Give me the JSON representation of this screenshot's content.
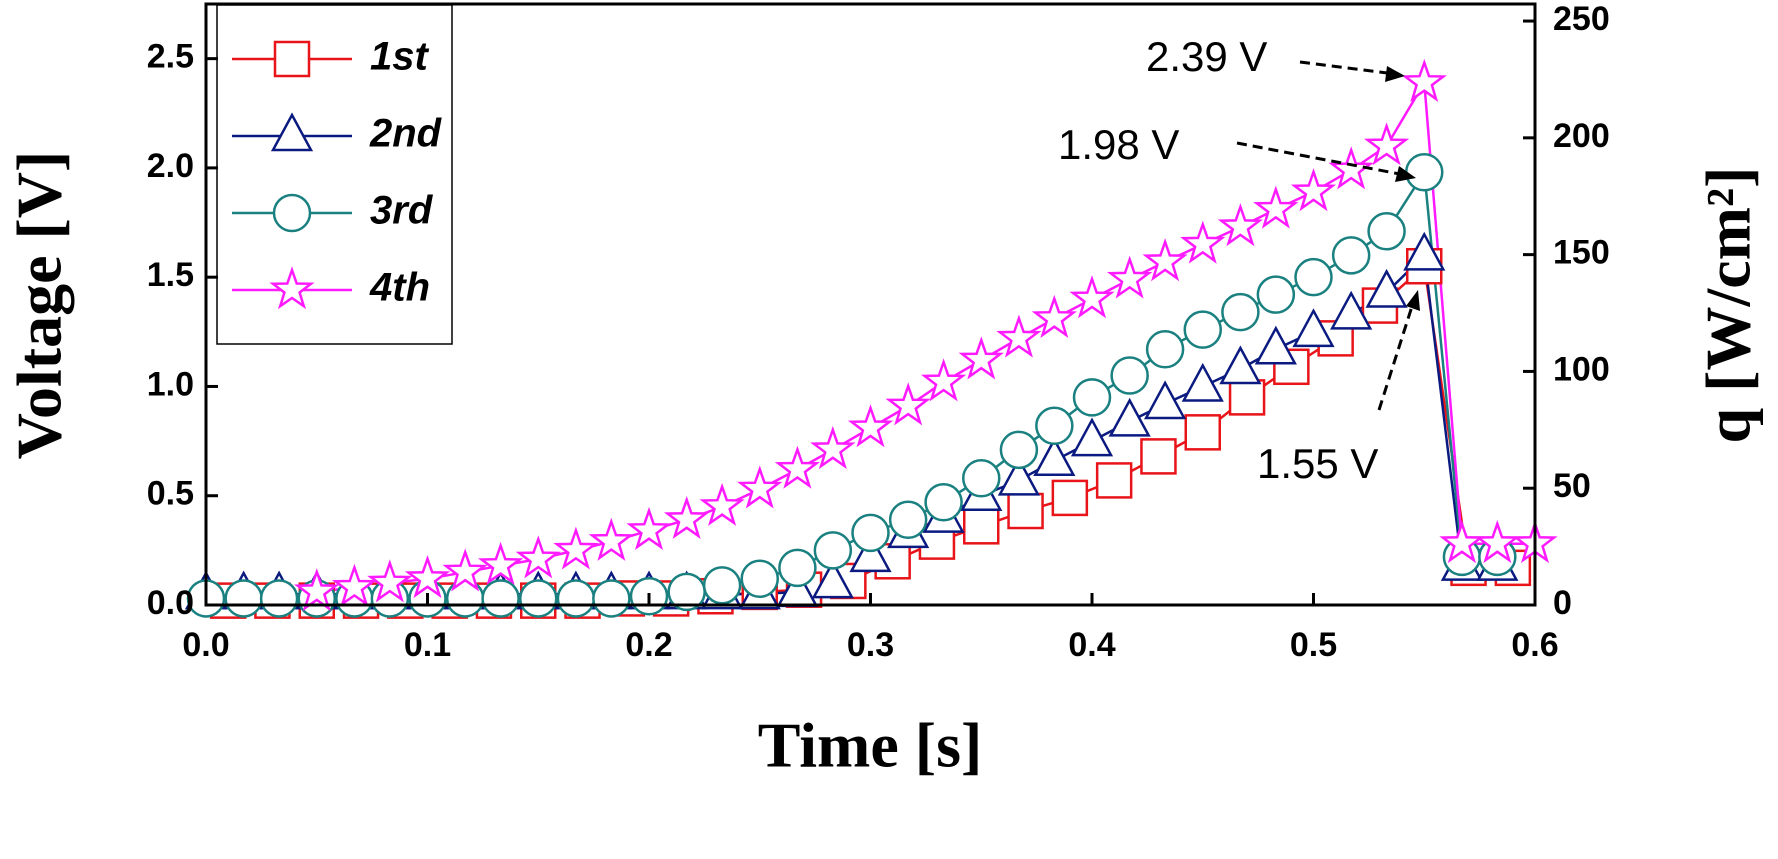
{
  "chart_data": {
    "type": "line",
    "x_label": "Time [s]",
    "y_label": "Voltage [V]",
    "y2_label": "q [W/cm²]",
    "xlim": [
      0,
      0.6
    ],
    "ylim": [
      0,
      2.75
    ],
    "y2lim": [
      0,
      257.3
    ],
    "xticks": [
      {
        "value": 0,
        "label": "0.0"
      },
      0.1,
      0.2,
      0.3,
      0.4,
      0.5,
      0.6
    ],
    "yticks": [
      {
        "value": 0,
        "label": "0.0"
      },
      0.5,
      {
        "value": 1,
        "label": "1.0"
      },
      1.5,
      {
        "value": 2,
        "label": "2.0"
      },
      2.5
    ],
    "y2ticks": [
      0,
      50,
      100,
      150,
      200,
      250
    ],
    "series": [
      {
        "name": "1st",
        "color": "#e8141a",
        "marker": "square",
        "x": [
          0.01,
          0.03,
          0.05,
          0.07,
          0.09,
          0.11,
          0.13,
          0.15,
          0.17,
          0.19,
          0.21,
          0.23,
          0.25,
          0.27,
          0.29,
          0.31,
          0.33,
          0.35,
          0.37,
          0.39,
          0.41,
          0.43,
          0.45,
          0.47,
          0.49,
          0.51,
          0.53,
          0.55,
          0.57,
          0.59
        ],
        "values": [
          0.02,
          0.02,
          0.02,
          0.02,
          0.02,
          0.02,
          0.02,
          0.02,
          0.02,
          0.03,
          0.03,
          0.04,
          0.06,
          0.07,
          0.11,
          0.2,
          0.29,
          0.36,
          0.43,
          0.49,
          0.57,
          0.68,
          0.79,
          0.95,
          1.09,
          1.22,
          1.37,
          1.55,
          0.17,
          0.17
        ]
      },
      {
        "name": "2nd",
        "color": "#0b1a80",
        "marker": "triangle",
        "x": [
          0,
          0.017,
          0.033,
          0.05,
          0.067,
          0.083,
          0.1,
          0.117,
          0.133,
          0.15,
          0.167,
          0.183,
          0.2,
          0.217,
          0.233,
          0.25,
          0.267,
          0.283,
          0.3,
          0.317,
          0.333,
          0.35,
          0.367,
          0.383,
          0.4,
          0.417,
          0.433,
          0.45,
          0.467,
          0.483,
          0.5,
          0.517,
          0.533,
          0.55,
          0.567,
          0.583
        ],
        "values": [
          0.05,
          0.05,
          0.05,
          0.05,
          0.05,
          0.05,
          0.05,
          0.05,
          0.05,
          0.05,
          0.05,
          0.05,
          0.05,
          0.05,
          0.05,
          0.05,
          0.06,
          0.1,
          0.22,
          0.33,
          0.4,
          0.5,
          0.57,
          0.66,
          0.75,
          0.84,
          0.92,
          1.0,
          1.08,
          1.17,
          1.25,
          1.33,
          1.43,
          1.6,
          0.18,
          0.18
        ]
      },
      {
        "name": "3rd",
        "color": "#1a8080",
        "marker": "circle",
        "x": [
          0,
          0.017,
          0.033,
          0.05,
          0.067,
          0.083,
          0.1,
          0.117,
          0.133,
          0.15,
          0.167,
          0.183,
          0.2,
          0.217,
          0.233,
          0.25,
          0.267,
          0.283,
          0.3,
          0.317,
          0.333,
          0.35,
          0.367,
          0.383,
          0.4,
          0.417,
          0.433,
          0.45,
          0.467,
          0.483,
          0.5,
          0.517,
          0.533,
          0.55,
          0.567,
          0.583
        ],
        "values": [
          0.03,
          0.03,
          0.03,
          0.03,
          0.03,
          0.03,
          0.03,
          0.03,
          0.03,
          0.03,
          0.03,
          0.03,
          0.04,
          0.06,
          0.09,
          0.12,
          0.17,
          0.25,
          0.33,
          0.39,
          0.47,
          0.58,
          0.71,
          0.82,
          0.95,
          1.05,
          1.17,
          1.26,
          1.34,
          1.42,
          1.5,
          1.6,
          1.71,
          1.98,
          0.22,
          0.22
        ]
      },
      {
        "name": "4th",
        "color": "#ff1aff",
        "marker": "star",
        "x": [
          0.05,
          0.067,
          0.083,
          0.1,
          0.117,
          0.133,
          0.15,
          0.167,
          0.183,
          0.2,
          0.217,
          0.233,
          0.25,
          0.267,
          0.283,
          0.3,
          0.317,
          0.333,
          0.35,
          0.367,
          0.383,
          0.4,
          0.417,
          0.433,
          0.45,
          0.467,
          0.483,
          0.5,
          0.517,
          0.533,
          0.55,
          0.567,
          0.583,
          0.6
        ],
        "values": [
          0.06,
          0.08,
          0.1,
          0.12,
          0.15,
          0.18,
          0.21,
          0.25,
          0.29,
          0.34,
          0.39,
          0.45,
          0.53,
          0.62,
          0.71,
          0.81,
          0.91,
          1.02,
          1.12,
          1.22,
          1.31,
          1.4,
          1.49,
          1.57,
          1.65,
          1.73,
          1.81,
          1.89,
          1.99,
          2.1,
          2.39,
          0.28,
          0.28,
          0.28
        ]
      }
    ],
    "annotations": [
      "2.39 V",
      "1.98 V",
      "1.55 V"
    ]
  }
}
